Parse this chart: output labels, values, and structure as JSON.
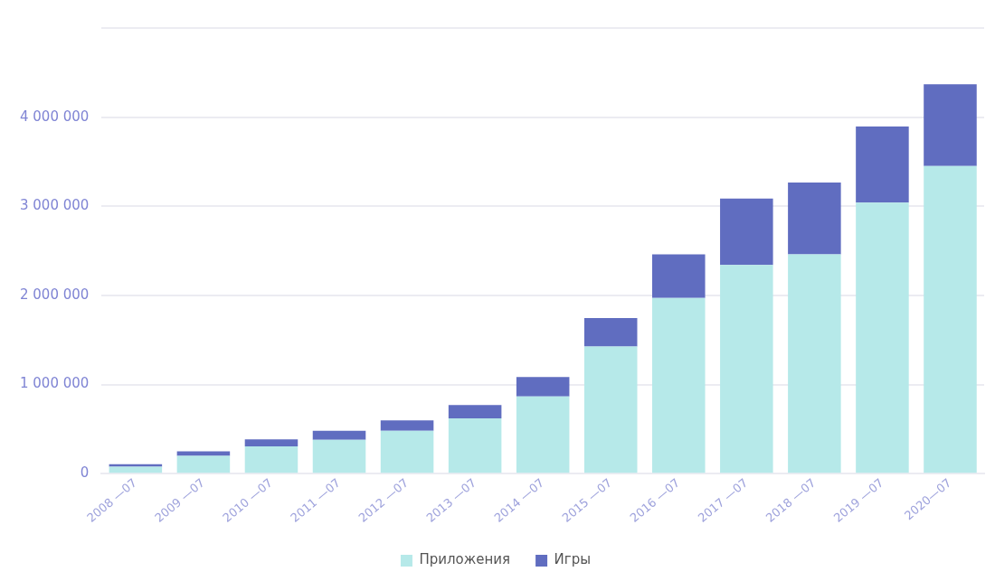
{
  "chart_data": {
    "type": "bar",
    "stacked": true,
    "categories": [
      "2008 —07",
      "2009 —07",
      "2010 —07",
      "2011 —07",
      "2012 —07",
      "2013 —07",
      "2014 —07",
      "2015 —07",
      "2016 —07",
      "2017 —07",
      "2018 —07",
      "2019 —07",
      "2020—07"
    ],
    "series": [
      {
        "name": "Приложения",
        "color": "#b6e9e9",
        "values": [
          78000,
          200000,
          305000,
          380000,
          480000,
          620000,
          865000,
          1425000,
          1970000,
          2340000,
          2460000,
          3040000,
          3450000
        ]
      },
      {
        "name": "Игры",
        "color": "#606dc0",
        "values": [
          28000,
          50000,
          80000,
          100000,
          118000,
          150000,
          220000,
          320000,
          490000,
          745000,
          805000,
          855000,
          920000
        ]
      }
    ],
    "ylim": [
      0,
      5000000
    ],
    "yticks": [
      {
        "value": 0,
        "label": "0"
      },
      {
        "value": 1000000,
        "label": "1 000 000"
      },
      {
        "value": 2000000,
        "label": "2 000 000"
      },
      {
        "value": 3000000,
        "label": "3 000 000"
      },
      {
        "value": 4000000,
        "label": "4 000 000"
      },
      {
        "value": 5000000,
        "label": null
      }
    ],
    "grid": "y",
    "legend": "bottom"
  }
}
